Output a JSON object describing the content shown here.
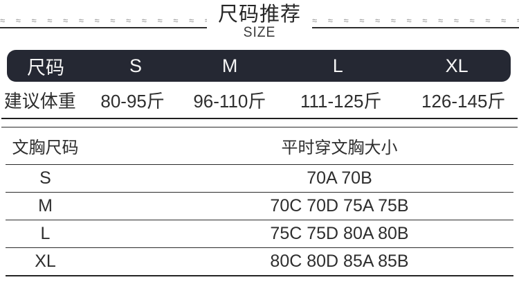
{
  "header": {
    "title": "尺码推荐",
    "subtitle": "SIZE",
    "wave": "≈ ≈ ≈ ≈ ≈ ≈ ≈ ≈ ≈ ≈ ≈ ≈ ≈ ≈ ≈ ≈ ≈ ≈ ≈ ≈ ≈ ≈ ≈ ≈ ≈ ≈ ≈ ≈"
  },
  "colors": {
    "header_bar": "#252833",
    "text": "#2e2e2e",
    "rule": "#2a2a2a",
    "wave": "#8f8f8f"
  },
  "size_table": {
    "columns": [
      "尺码",
      "S",
      "M",
      "L",
      "XL"
    ],
    "weight_row": {
      "label": "建议体重",
      "values": [
        "80-95斤",
        "96-110斤",
        "111-125斤",
        "126-145斤"
      ]
    }
  },
  "bra_table": {
    "header": {
      "label": "文胸尺码",
      "value": "平时穿文胸大小"
    },
    "rows": [
      {
        "label": "S",
        "value": "70A 70B"
      },
      {
        "label": "M",
        "value": "70C 70D 75A 75B"
      },
      {
        "label": "L",
        "value": "75C 75D 80A 80B"
      },
      {
        "label": "XL",
        "value": "80C 80D 85A 85B"
      }
    ]
  },
  "chart_data": [
    {
      "type": "table",
      "title": "尺码推荐 SIZE",
      "columns": [
        "尺码",
        "S",
        "M",
        "L",
        "XL"
      ],
      "rows": [
        [
          "建议体重",
          "80-95斤",
          "96-110斤",
          "111-125斤",
          "126-145斤"
        ]
      ]
    },
    {
      "type": "table",
      "columns": [
        "文胸尺码",
        "平时穿文胸大小"
      ],
      "rows": [
        [
          "S",
          "70A 70B"
        ],
        [
          "M",
          "70C 70D 75A 75B"
        ],
        [
          "L",
          "75C 75D 80A 80B"
        ],
        [
          "XL",
          "80C 80D 85A 85B"
        ]
      ]
    }
  ]
}
